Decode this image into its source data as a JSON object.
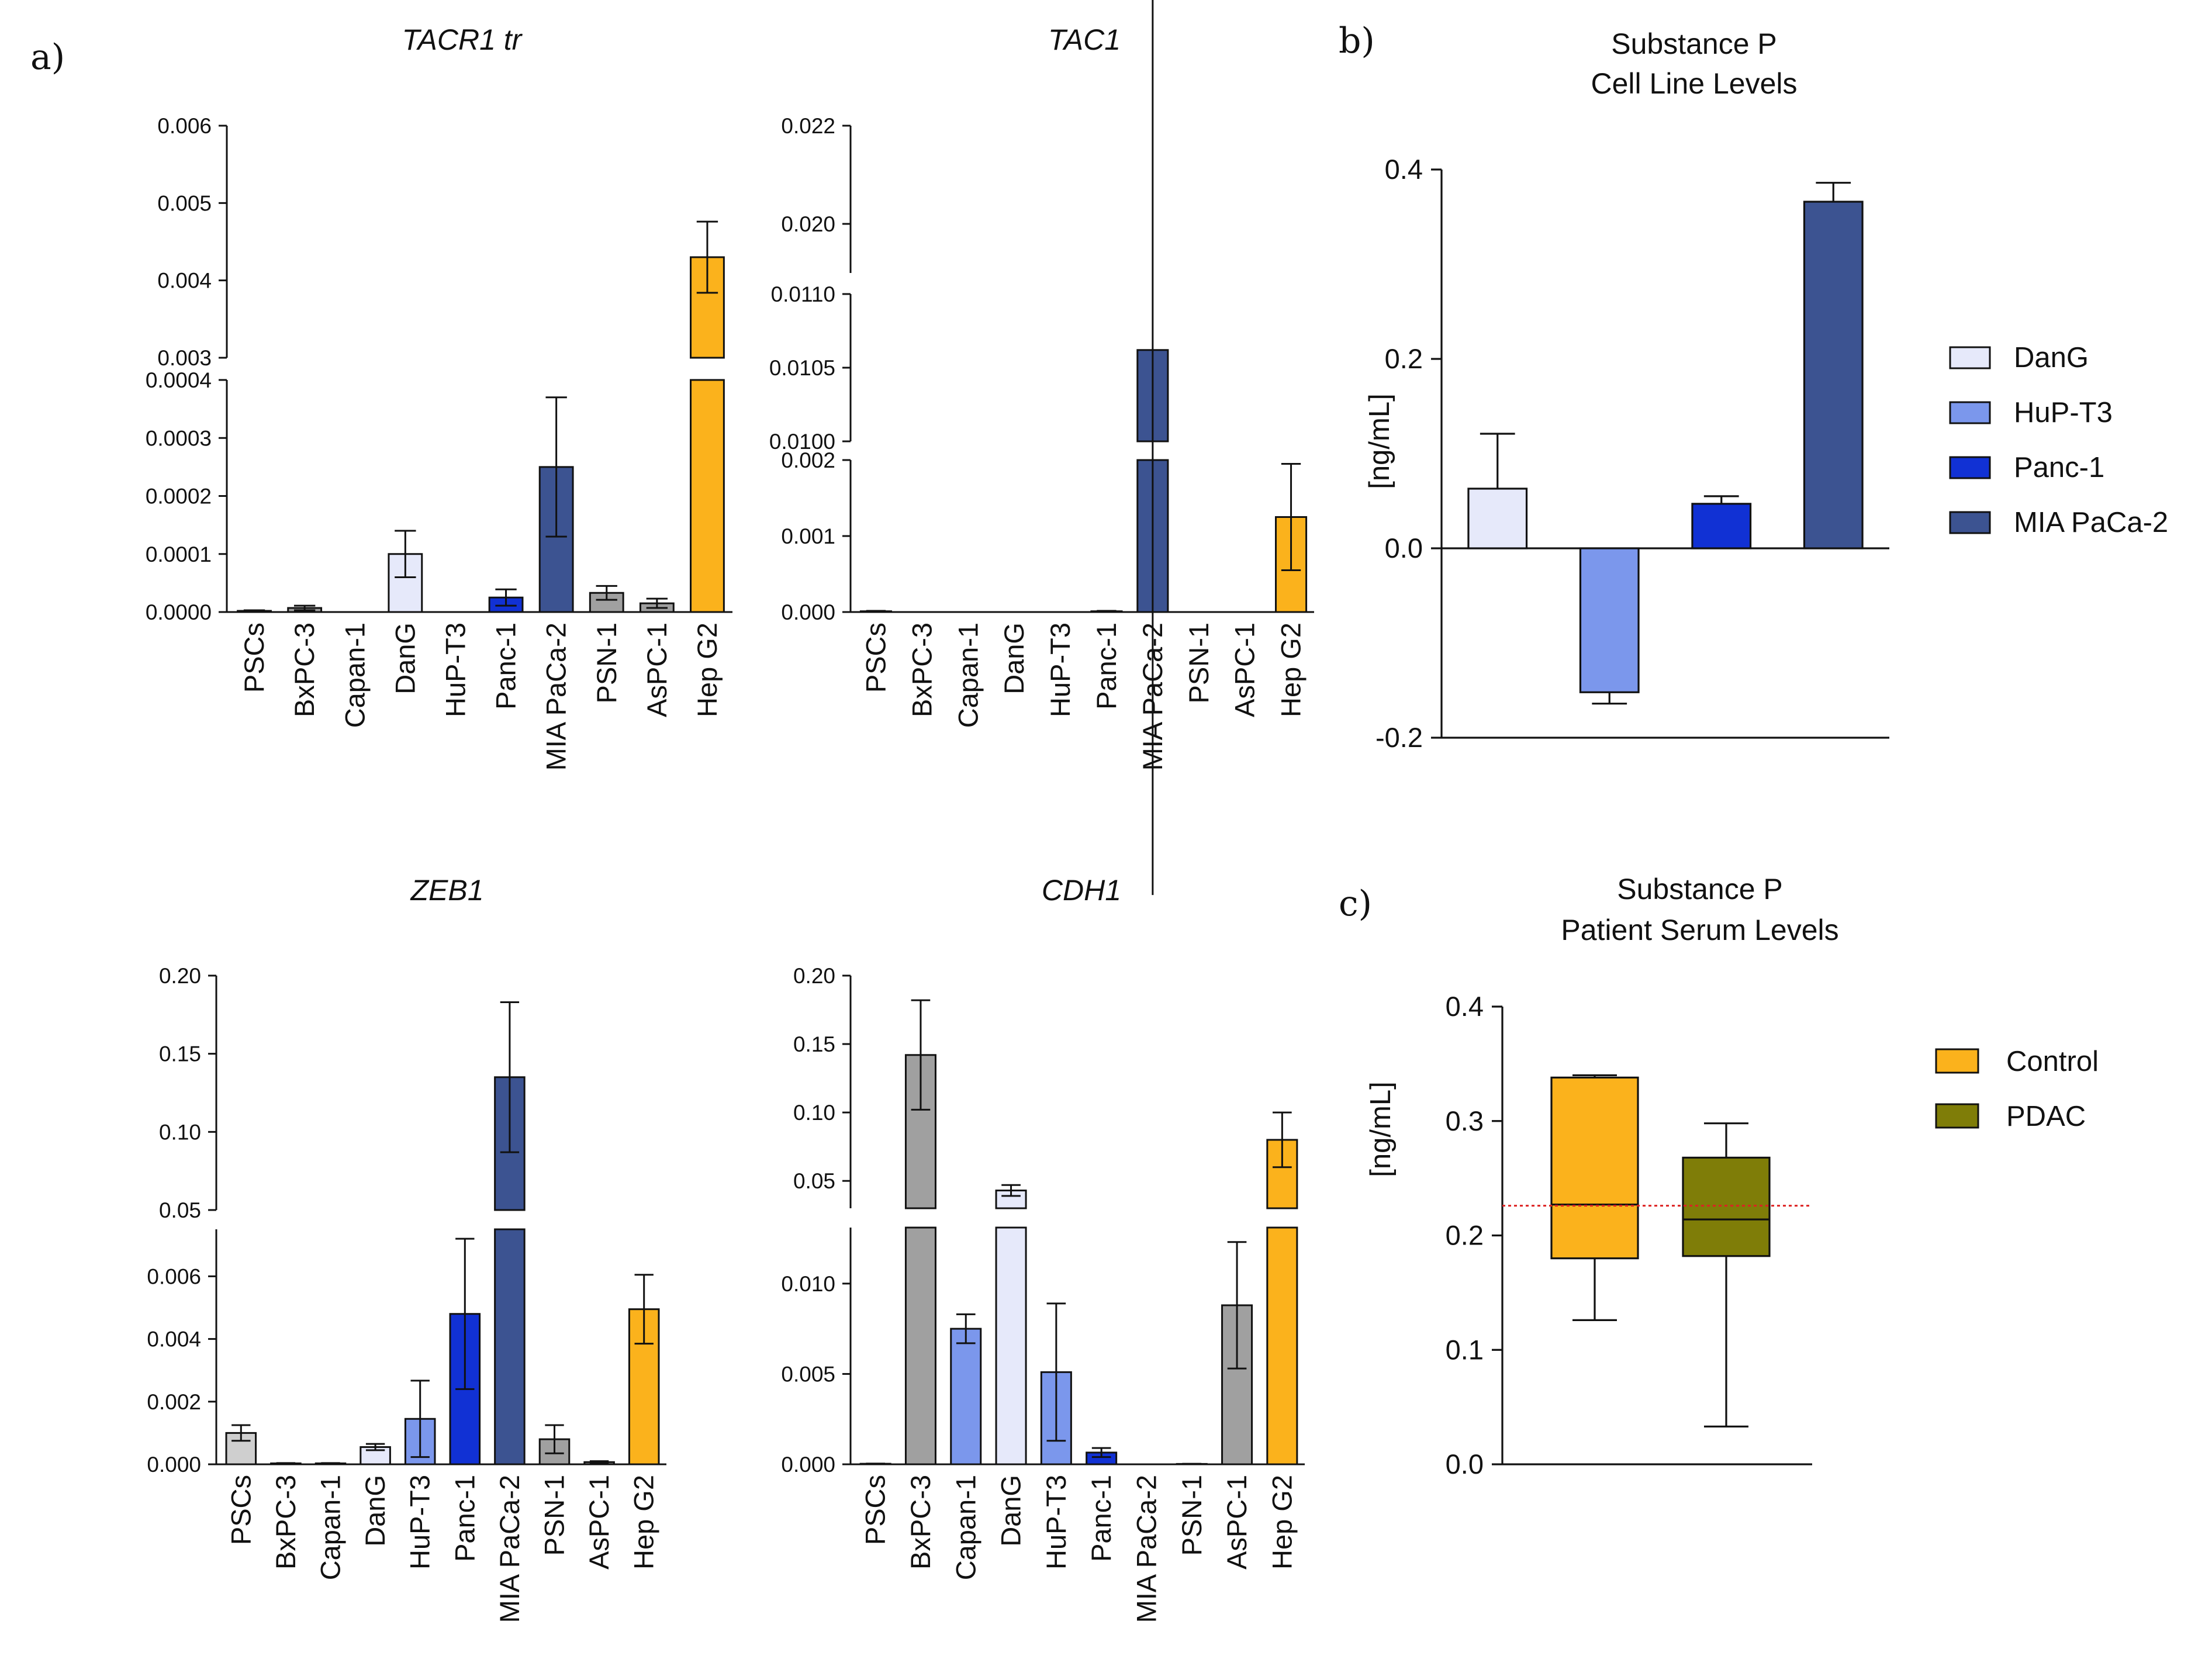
{
  "panel_labels": {
    "a": "a)",
    "b": "b)",
    "c": "c)"
  },
  "colors": {
    "PSCs": "#cfcfcf",
    "BxPC-3": "#a0a0a0",
    "Capan-1": "#7b97ec",
    "DanG": "#e6e9fa",
    "HuP-T3": "#7b97ec",
    "Panc-1": "#1131d4",
    "MIA PaCa-2": "#3c5391",
    "PSN-1": "#a0a0a0",
    "AsPC-1": "#a0a0a0",
    "Hep G2": "#fbb21c",
    "Control": "#fbb21c",
    "PDAC": "#7f7d08",
    "refline": "#dd2222"
  },
  "chart_data": [
    {
      "id": "tacr1",
      "type": "bar",
      "title": "TACR1 tr",
      "ylabel": "",
      "categories": [
        "PSCs",
        "BxPC-3",
        "Capan-1",
        "DanG",
        "HuP-T3",
        "Panc-1",
        "MIA PaCa-2",
        "PSN-1",
        "AsPC-1",
        "Hep G2"
      ],
      "values": [
        2e-06,
        7e-06,
        0.0,
        0.0001,
        0.0,
        2.5e-05,
        0.00025,
        3.3e-05,
        1.5e-05,
        0.0043
      ],
      "errors": [
        1e-06,
        4e-06,
        0.0,
        4e-05,
        0.0,
        1.4e-05,
        0.00012,
        1.2e-05,
        8e-06,
        0.00046
      ],
      "ylim_lower": [
        0,
        0.0004
      ],
      "ylim_upper": [
        0.003,
        0.006
      ],
      "ticks_lower": [
        "0.0000",
        "0.0001",
        "0.0002",
        "0.0003",
        "0.0004"
      ],
      "ticks_upper": [
        "0.003",
        "0.004",
        "0.005",
        "0.006"
      ]
    },
    {
      "id": "tac1",
      "type": "bar",
      "title": "TAC1",
      "ylabel": "",
      "categories": [
        "PSCs",
        "BxPC-3",
        "Capan-1",
        "DanG",
        "HuP-T3",
        "Panc-1",
        "MIA PaCa-2",
        "PSN-1",
        "AsPC-1",
        "Hep G2"
      ],
      "values": [
        1e-05,
        0.0,
        0.0,
        0.0,
        0.0,
        1e-05,
        0.01062,
        0.0,
        0.0,
        0.00125
      ],
      "errors": [
        5e-06,
        0.0,
        0.0,
        0.0,
        0.0,
        5e-06,
        0.0037,
        0.0,
        0.0,
        0.0007
      ],
      "ylim_lower": [
        0,
        0.002
      ],
      "ylim_middle": [
        0.01,
        0.011
      ],
      "ylim_upper": [
        0.019,
        0.022
      ],
      "ticks_lower": [
        "0.000",
        "0.001",
        "0.002"
      ],
      "ticks_middle": [
        "0.0100",
        "0.0105",
        "0.0110"
      ],
      "ticks_upper": [
        "0.020",
        "0.022"
      ]
    },
    {
      "id": "zeb1",
      "type": "bar",
      "title": "ZEB1",
      "ylabel": "",
      "categories": [
        "PSCs",
        "BxPC-3",
        "Capan-1",
        "DanG",
        "HuP-T3",
        "Panc-1",
        "MIA PaCa-2",
        "PSN-1",
        "AsPC-1",
        "Hep G2"
      ],
      "values": [
        0.001,
        3e-05,
        3e-05,
        0.00055,
        0.00145,
        0.0048,
        0.135,
        0.0008,
        7e-05,
        0.00495
      ],
      "errors": [
        0.00025,
        1e-05,
        1e-05,
        0.0001,
        0.00122,
        0.0024,
        0.048,
        0.00045,
        3e-05,
        0.0011
      ],
      "ylim_lower": [
        0,
        0.0075
      ],
      "ylim_upper": [
        0.05,
        0.2
      ],
      "ticks_lower": [
        "0.000",
        "0.002",
        "0.004",
        "0.006"
      ],
      "ticks_upper": [
        "0.05",
        "0.10",
        "0.15",
        "0.20"
      ]
    },
    {
      "id": "cdh1",
      "type": "bar",
      "title": "CDH1",
      "ylabel": "",
      "categories": [
        "PSCs",
        "BxPC-3",
        "Capan-1",
        "DanG",
        "HuP-T3",
        "Panc-1",
        "MIA PaCa-2",
        "PSN-1",
        "AsPC-1",
        "Hep G2"
      ],
      "values": [
        3e-05,
        0.142,
        0.0075,
        0.043,
        0.0051,
        0.00065,
        0.0,
        2e-05,
        0.0088,
        0.08
      ],
      "errors": [
        1e-05,
        0.04,
        0.0008,
        0.004,
        0.0038,
        0.00025,
        0.0,
        1e-05,
        0.0035,
        0.02
      ],
      "ylim_lower": [
        0,
        0.0131
      ],
      "ylim_upper": [
        0.03,
        0.2
      ],
      "ticks_lower": [
        "0.000",
        "0.005",
        "0.010"
      ],
      "ticks_upper": [
        "0.05",
        "0.10",
        "0.15",
        "0.20"
      ]
    },
    {
      "id": "sp_cell",
      "type": "bar",
      "title": "Substance P",
      "subtitle": "Cell Line Levels",
      "ylabel": "[ng/mL]",
      "categories": [
        "DanG",
        "HuP-T3",
        "Panc-1",
        "MIA PaCa-2"
      ],
      "values": [
        0.063,
        -0.152,
        0.047,
        0.366
      ],
      "errors": [
        0.058,
        0.012,
        0.008,
        0.02
      ],
      "ylim": [
        -0.2,
        0.4
      ],
      "ticks": [
        "-0.2",
        "0.0",
        "0.2",
        "0.4"
      ],
      "legend": [
        "DanG",
        "HuP-T3",
        "Panc-1",
        "MIA PaCa-2"
      ]
    },
    {
      "id": "sp_serum",
      "type": "box",
      "title": "Substance P",
      "subtitle": "Patient Serum Levels",
      "ylabel": "[ng/mL]",
      "categories": [
        "Control",
        "PDAC"
      ],
      "boxes": [
        {
          "name": "Control",
          "min": 0.126,
          "q1": 0.18,
          "median": 0.227,
          "q3": 0.338,
          "max": 0.34
        },
        {
          "name": "PDAC",
          "min": 0.033,
          "q1": 0.182,
          "median": 0.214,
          "q3": 0.268,
          "max": 0.298
        }
      ],
      "reference_line": 0.226,
      "ylim": [
        0,
        0.4
      ],
      "ticks": [
        "0.0",
        "0.1",
        "0.2",
        "0.3",
        "0.4"
      ],
      "legend": [
        "Control",
        "PDAC"
      ]
    }
  ]
}
